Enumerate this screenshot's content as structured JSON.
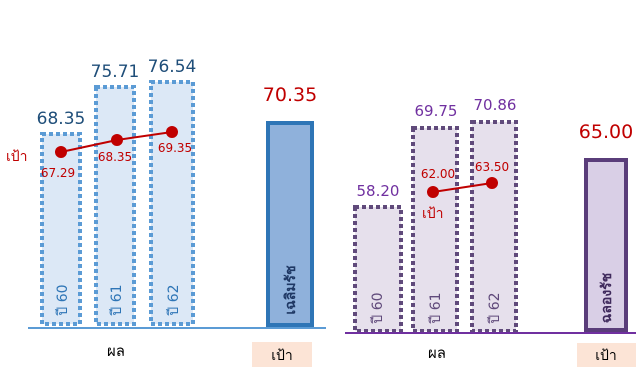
{
  "chart_data": [
    {
      "type": "bar",
      "categories": [
        "ปี 60",
        "ปี 61",
        "ปี 62"
      ],
      "values": [
        68.35,
        75.71,
        76.54
      ],
      "target": {
        "label": "เป้า",
        "series_values": [
          67.29,
          68.35,
          69.35
        ]
      },
      "target_bar": {
        "label": "เฉลิมรัช",
        "value": 70.35
      },
      "xlabel": "ผล",
      "target_xlabel": "เป้า",
      "colors": {
        "bar_border": "#5b9bd5",
        "bar_fill": "#dce8f6",
        "value_text": "#1f4e79",
        "target_fill": "#8fb1db",
        "target_border": "#2e75b6",
        "axis": "#5b9bd5"
      }
    },
    {
      "type": "bar",
      "categories": [
        "ปี 60",
        "ปี 61",
        "ปี 62"
      ],
      "values": [
        58.2,
        69.75,
        70.86
      ],
      "target": {
        "label": "เป้า",
        "series_values": [
          62.0,
          63.5
        ]
      },
      "target_bar": {
        "label": "ฉลองรัช",
        "value": 65.0
      },
      "xlabel": "ผล",
      "target_xlabel": "เป้า",
      "colors": {
        "bar_border": "#604a7b",
        "bar_fill": "#e6e0ec",
        "value_text": "#7030a0",
        "target_fill": "#d9cfe6",
        "target_border": "#5a3d7a",
        "axis": "#7030a0"
      }
    }
  ],
  "display": {
    "c0_values": [
      "68.35",
      "75.71",
      "76.54"
    ],
    "c0_target_labels": [
      "67.29",
      "68.35",
      "69.35"
    ],
    "c0_target_bar_value": "70.35",
    "c1_values": [
      "58.20",
      "69.75",
      "70.86"
    ],
    "c1_target_labels": [
      "62.00",
      "63.50"
    ],
    "c1_target_bar_value": "65.00"
  },
  "line_color": "#c00000",
  "target_value_color": "#c00000",
  "footer_box_fill": "#fce4d6"
}
